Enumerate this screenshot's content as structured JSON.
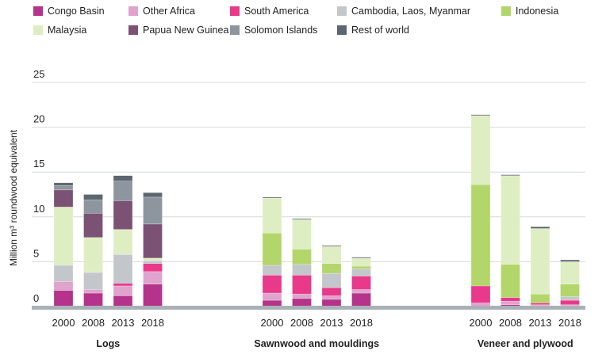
{
  "chart_data": {
    "type": "bar",
    "stacked": true,
    "ylabel": "Million m³ roundwood equivalent",
    "ylim": [
      0,
      25
    ],
    "yticks": [
      0,
      5,
      10,
      15,
      20,
      25
    ],
    "grid": true,
    "legend_position": "top",
    "series": [
      {
        "name": "Congo Basin",
        "color": "#b5338a"
      },
      {
        "name": "Other Africa",
        "color": "#dfa3cd"
      },
      {
        "name": "South America",
        "color": "#e8398a"
      },
      {
        "name": "Cambodia, Laos, Myanmar",
        "color": "#c3c7cc"
      },
      {
        "name": "Indonesia",
        "color": "#b3d66a"
      },
      {
        "name": "Malaysia",
        "color": "#dfedc2"
      },
      {
        "name": "Papua New Guinea",
        "color": "#7b5273"
      },
      {
        "name": "Solomon Islands",
        "color": "#8d969e"
      },
      {
        "name": "Rest of world",
        "color": "#5c6670"
      }
    ],
    "groups": [
      {
        "label": "Logs",
        "years": [
          "2000",
          "2008",
          "2013",
          "2018"
        ],
        "values": [
          [
            1.8,
            1.0,
            0.0,
            1.8,
            0.0,
            6.5,
            1.9,
            0.5,
            0.3
          ],
          [
            1.5,
            0.4,
            0.0,
            1.9,
            0.0,
            3.9,
            2.7,
            1.5,
            0.6
          ],
          [
            1.2,
            1.1,
            0.3,
            3.2,
            0.0,
            2.8,
            3.2,
            2.2,
            0.6
          ],
          [
            2.5,
            1.4,
            0.9,
            0.3,
            0.0,
            0.3,
            3.8,
            3.0,
            0.5
          ]
        ]
      },
      {
        "label": "Sawnwood and mouldings",
        "years": [
          "2000",
          "2008",
          "2013",
          "2018"
        ],
        "values": [
          [
            0.7,
            0.8,
            2.0,
            1.1,
            3.6,
            3.9,
            0.0,
            0.0,
            0.1
          ],
          [
            0.9,
            0.5,
            2.1,
            1.2,
            1.7,
            3.3,
            0.0,
            0.0,
            0.1
          ],
          [
            0.8,
            0.4,
            0.9,
            1.6,
            1.1,
            1.9,
            0.0,
            0.0,
            0.1
          ],
          [
            1.5,
            0.4,
            1.5,
            0.8,
            0.3,
            0.9,
            0.0,
            0.0,
            0.1
          ]
        ]
      },
      {
        "label": "Veneer and plywood",
        "years": [
          "2000",
          "2008",
          "2013",
          "2018"
        ],
        "values": [
          [
            0.0,
            0.4,
            1.9,
            0.0,
            11.3,
            7.7,
            0.0,
            0.0,
            0.1
          ],
          [
            0.2,
            0.4,
            0.4,
            0.0,
            3.7,
            9.9,
            0.0,
            0.0,
            0.1
          ],
          [
            0.1,
            0.1,
            0.2,
            0.0,
            1.0,
            7.3,
            0.0,
            0.0,
            0.2
          ],
          [
            0.1,
            0.1,
            0.5,
            0.4,
            1.4,
            2.5,
            0.0,
            0.0,
            0.2
          ]
        ]
      }
    ]
  }
}
